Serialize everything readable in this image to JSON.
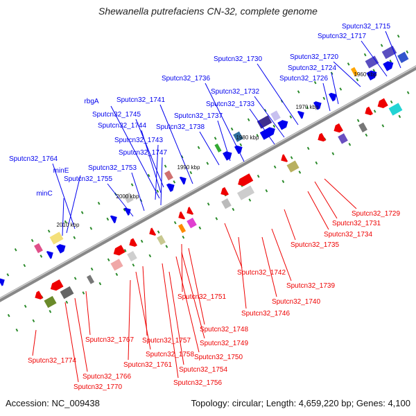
{
  "title": "Shewanella putrefaciens CN-32, complete genome",
  "accession_text": "Accession: NC_009438",
  "stats_text": "Topology: circular; Length: 4,659,220 bp; Genes: 4,100",
  "colors": {
    "forward": "#0000ee",
    "reverse": "#ee0000",
    "backbone": "#888888",
    "tick": "#2a8a2a"
  },
  "kbp_marks": [
    "1960 kbp",
    "1970 kbp",
    "1980 kbp",
    "1990 kbp",
    "2000 kbp",
    "2010 kbp"
  ],
  "forward_labels": [
    "Sputcn32_1715",
    "Sputcn32_1717",
    "Sputcn32_1720",
    "Sputcn32_1724",
    "Sputcn32_1726",
    "Sputcn32_1730",
    "Sputcn32_1732",
    "Sputcn32_1733",
    "Sputcn32_1736",
    "Sputcn32_1737",
    "Sputcn32_1738",
    "Sputcn32_1741",
    "rbgA",
    "Sputcn32_1745",
    "Sputcn32_1744",
    "Sputcn32_1743",
    "Sputcn32_1747",
    "Sputcn32_1753",
    "Sputcn32_1764",
    "minE",
    "Sputcn32_1755",
    "minC"
  ],
  "reverse_labels": [
    "Sputcn32_1729",
    "Sputcn32_1731",
    "Sputcn32_1734",
    "Sputcn32_1735",
    "Sputcn32_1739",
    "Sputcn32_1740",
    "Sputcn32_1742",
    "Sputcn32_1746",
    "Sputcn32_1751",
    "Sputcn32_1748",
    "Sputcn32_1749",
    "Sputcn32_1750",
    "Sputcn32_1757",
    "Sputcn32_1758",
    "Sputcn32_1754",
    "Sputcn32_1756",
    "Sputcn32_1761",
    "Sputcn32_1767",
    "Sputcn32_1766",
    "Sputcn32_1770",
    "Sputcn32_1774"
  ]
}
